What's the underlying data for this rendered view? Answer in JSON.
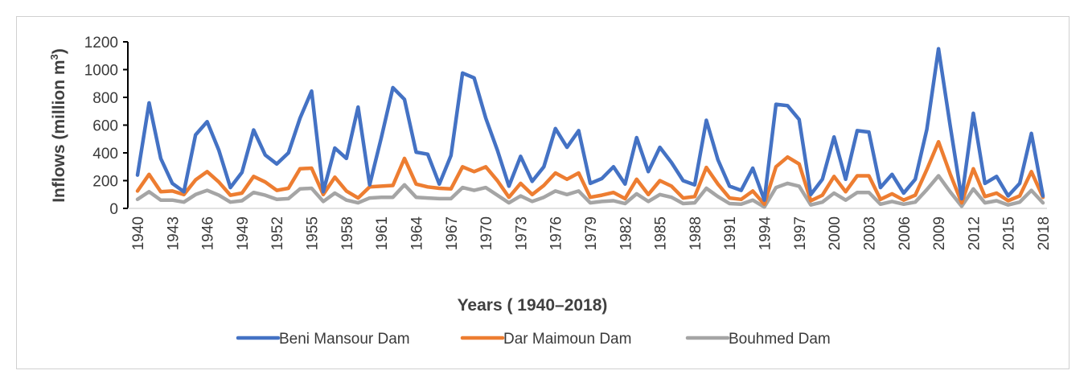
{
  "chart_data": {
    "type": "line",
    "title": "",
    "xlabel": "Years ( 1940–2018)",
    "ylabel": "Inflows (million m³)",
    "ylabel_main": "Inflows (million m",
    "ylabel_sup": "3",
    "ylabel_close": ")",
    "ylim": [
      0,
      1200
    ],
    "yticks": [
      0,
      200,
      400,
      600,
      800,
      1000,
      1200
    ],
    "xlim": [
      1940,
      2018
    ],
    "xticks": [
      1940,
      1943,
      1946,
      1949,
      1952,
      1955,
      1958,
      1961,
      1964,
      1967,
      1970,
      1973,
      1976,
      1979,
      1982,
      1985,
      1988,
      1991,
      1994,
      1997,
      2000,
      2003,
      2006,
      2009,
      2012,
      2015,
      2018
    ],
    "grid": false,
    "legend_position": "bottom",
    "x": [
      1940,
      1941,
      1942,
      1943,
      1944,
      1945,
      1946,
      1947,
      1948,
      1949,
      1950,
      1951,
      1952,
      1953,
      1954,
      1955,
      1956,
      1957,
      1958,
      1959,
      1960,
      1961,
      1962,
      1963,
      1964,
      1965,
      1966,
      1967,
      1968,
      1969,
      1970,
      1971,
      1972,
      1973,
      1974,
      1975,
      1976,
      1977,
      1978,
      1979,
      1980,
      1981,
      1982,
      1983,
      1984,
      1985,
      1986,
      1987,
      1988,
      1989,
      1990,
      1991,
      1992,
      1993,
      1994,
      1995,
      1996,
      1997,
      1998,
      1999,
      2000,
      2001,
      2002,
      2003,
      2004,
      2005,
      2006,
      2007,
      2008,
      2009,
      2010,
      2011,
      2012,
      2013,
      2014,
      2015,
      2016,
      2017,
      2018
    ],
    "series": [
      {
        "name": "Beni Mansour Dam",
        "color": "#4472c4",
        "values": [
          240,
          760,
          360,
          180,
          120,
          530,
          625,
          420,
          150,
          260,
          565,
          385,
          320,
          400,
          650,
          845,
          120,
          435,
          360,
          730,
          170,
          510,
          870,
          785,
          405,
          390,
          175,
          380,
          975,
          940,
          650,
          420,
          160,
          375,
          195,
          300,
          575,
          440,
          560,
          180,
          215,
          300,
          175,
          510,
          265,
          440,
          330,
          200,
          170,
          635,
          350,
          160,
          130,
          290,
          60,
          750,
          740,
          640,
          100,
          210,
          515,
          210,
          560,
          550,
          150,
          245,
          110,
          210,
          570,
          1150,
          600,
          70,
          685,
          180,
          230,
          90,
          180,
          540,
          90
        ]
      },
      {
        "name": "Dar Maimoun Dam",
        "color": "#ed7d31",
        "values": [
          125,
          245,
          120,
          125,
          100,
          205,
          265,
          190,
          95,
          110,
          230,
          190,
          130,
          145,
          285,
          290,
          100,
          225,
          125,
          75,
          155,
          160,
          165,
          360,
          175,
          155,
          145,
          140,
          300,
          265,
          300,
          200,
          80,
          180,
          100,
          165,
          255,
          210,
          255,
          80,
          95,
          115,
          70,
          210,
          100,
          200,
          160,
          75,
          85,
          295,
          175,
          75,
          65,
          125,
          30,
          300,
          370,
          320,
          55,
          95,
          230,
          120,
          235,
          235,
          65,
          105,
          60,
          95,
          280,
          480,
          250,
          40,
          285,
          85,
          110,
          55,
          90,
          265,
          80
        ]
      },
      {
        "name": "Bouhmed Dam",
        "color": "#a5a5a5",
        "values": [
          65,
          120,
          60,
          60,
          45,
          100,
          130,
          95,
          45,
          55,
          115,
          95,
          65,
          70,
          140,
          145,
          50,
          110,
          60,
          40,
          75,
          80,
          80,
          170,
          80,
          75,
          70,
          70,
          150,
          130,
          150,
          95,
          40,
          90,
          50,
          80,
          125,
          100,
          125,
          40,
          50,
          55,
          35,
          105,
          50,
          100,
          80,
          35,
          40,
          145,
          85,
          35,
          30,
          60,
          10,
          150,
          180,
          160,
          25,
          45,
          110,
          60,
          115,
          115,
          30,
          50,
          30,
          45,
          135,
          235,
          120,
          15,
          140,
          40,
          55,
          25,
          45,
          130,
          40
        ]
      }
    ]
  }
}
